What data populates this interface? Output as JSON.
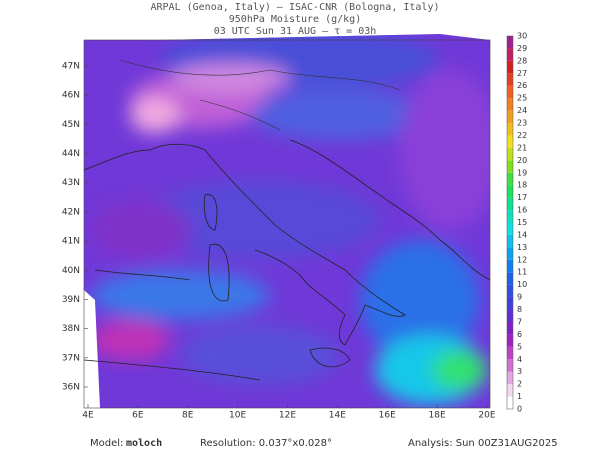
{
  "header": {
    "line1": "ARPAL (Genoa, Italy)  –  ISAC-CNR (Bologna, Italy)",
    "line2": "950hPa Moisture (g/kg)",
    "line3": "03 UTC Sun 31 AUG  –  τ = 03h"
  },
  "map": {
    "lon_labels": [
      "4E",
      "6E",
      "8E",
      "10E",
      "12E",
      "14E",
      "16E",
      "18E",
      "20E"
    ],
    "lat_labels": [
      "47N",
      "46N",
      "45N",
      "44N",
      "43N",
      "42N",
      "41N",
      "40N",
      "39N",
      "38N",
      "37N",
      "36N"
    ]
  },
  "colorbar": {
    "labels": [
      0,
      1,
      2,
      3,
      4,
      5,
      6,
      7,
      8,
      9,
      10,
      11,
      12,
      13,
      14,
      15,
      16,
      17,
      18,
      19,
      20,
      21,
      22,
      23,
      24,
      25,
      26,
      27,
      28,
      29,
      30
    ],
    "colors": [
      "#ffffff",
      "#f0d8f0",
      "#e0a8e0",
      "#d070d0",
      "#c040c8",
      "#a020c0",
      "#8020c8",
      "#6030d0",
      "#4040d8",
      "#3050e0",
      "#2060e8",
      "#1080f0",
      "#10a0f0",
      "#10c0f0",
      "#10e0e8",
      "#10e0c0",
      "#10e090",
      "#20e060",
      "#40e040",
      "#80e020",
      "#c0e020",
      "#f0e020",
      "#f0c020",
      "#f0a020",
      "#f08020",
      "#f06020",
      "#e04020",
      "#d02020",
      "#c02060",
      "#a02090"
    ]
  },
  "footer": {
    "model_label": "Model:",
    "model": "moloch",
    "resolution": "Resolution: 0.037°x0.028°",
    "analysis": "Analysis: Sun 00Z31AUG2025"
  }
}
